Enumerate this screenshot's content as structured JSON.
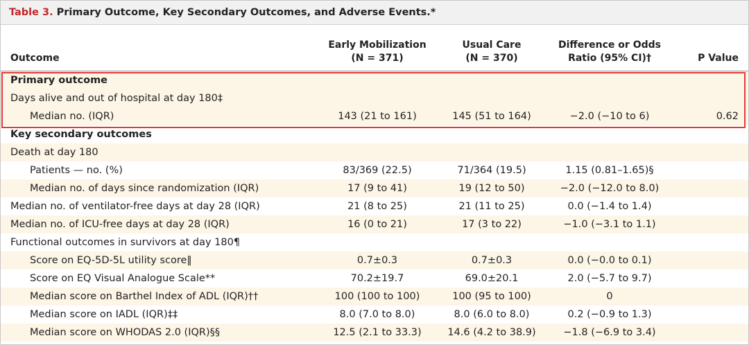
{
  "table": {
    "label": "Table 3.",
    "title": "Primary Outcome, Key Secondary Outcomes, and Adverse Events.*",
    "headers": {
      "outcome": "Outcome",
      "early_line1": "Early Mobilization",
      "early_line2": "(N = 371)",
      "usual_line1": "Usual Care",
      "usual_line2": "(N = 370)",
      "diff_line1": "Difference or Odds",
      "diff_line2": "Ratio (95% CI)†",
      "p": "P Value"
    },
    "rows": [
      {
        "label": "Primary outcome",
        "early": "",
        "usual": "",
        "diff": "",
        "p": ""
      },
      {
        "label": "Days alive and out of hospital at day 180‡",
        "early": "",
        "usual": "",
        "diff": "",
        "p": ""
      },
      {
        "label": "Median no. (IQR)",
        "early": "143 (21 to 161)",
        "usual": "145 (51 to 164)",
        "diff": "−2.0 (−10 to 6)",
        "p": "0.62"
      },
      {
        "label": "Key secondary outcomes",
        "early": "",
        "usual": "",
        "diff": "",
        "p": ""
      },
      {
        "label": "Death at day 180",
        "early": "",
        "usual": "",
        "diff": "",
        "p": ""
      },
      {
        "label": "Patients — no. (%)",
        "early": "83/369 (22.5)",
        "usual": "71/364 (19.5)",
        "diff": "1.15 (0.81–1.65)§",
        "p": ""
      },
      {
        "label": "Median no. of days since randomization (IQR)",
        "early": "17 (9 to 41)",
        "usual": "19 (12 to 50)",
        "diff": "−2.0 (−12.0 to 8.0)",
        "p": ""
      },
      {
        "label": "Median no. of ventilator-free days at day 28 (IQR)",
        "early": "21 (8 to 25)",
        "usual": "21 (11 to 25)",
        "diff": "0.0 (−1.4 to 1.4)",
        "p": ""
      },
      {
        "label": "Median no. of ICU-free days at day 28 (IQR)",
        "early": "16 (0 to 21)",
        "usual": "17 (3 to 22)",
        "diff": "−1.0 (−3.1 to 1.1)",
        "p": ""
      },
      {
        "label": "Functional outcomes in survivors at day 180¶",
        "early": "",
        "usual": "",
        "diff": "",
        "p": ""
      },
      {
        "label": "Score on EQ-5D-5L utility score‖",
        "early": "0.7±0.3",
        "usual": "0.7±0.3",
        "diff": "0.0 (−0.0 to 0.1)",
        "p": ""
      },
      {
        "label": "Score on EQ Visual Analogue Scale**",
        "early": "70.2±19.7",
        "usual": "69.0±20.1",
        "diff": "2.0 (−5.7 to 9.7)",
        "p": ""
      },
      {
        "label": "Median score on Barthel Index of ADL (IQR)††",
        "early": "100 (100 to 100)",
        "usual": "100 (95 to 100)",
        "diff": "0",
        "p": ""
      },
      {
        "label": "Median score on IADL (IQR)‡‡",
        "early": "8.0 (7.0 to 8.0)",
        "usual": "8.0 (6.0 to 8.0)",
        "diff": "0.2 (−0.9 to 1.3)",
        "p": ""
      },
      {
        "label": "Median score on WHODAS 2.0 (IQR)§§",
        "early": "12.5 (2.1 to 33.3)",
        "usual": "14.6 (4.2 to 38.9)",
        "diff": "−1.8 (−6.9 to 3.4)",
        "p": ""
      }
    ]
  },
  "colors": {
    "label_red": "#c0272d",
    "row_shade": "#fdf6e7",
    "highlight_border": "#e23a3a"
  }
}
